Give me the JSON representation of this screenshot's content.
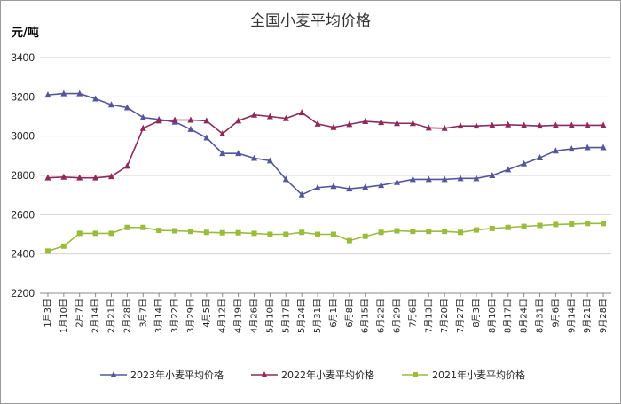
{
  "chart_data": {
    "type": "line",
    "title": "全国小麦平均价格",
    "ylabel": "元/吨",
    "xlabel": "",
    "ylim": [
      2200,
      3400
    ],
    "yticks": [
      2200,
      2400,
      2600,
      2800,
      3000,
      3200,
      3400
    ],
    "grid": true,
    "legend_position": "bottom",
    "categories": [
      "1月3日",
      "1月10日",
      "2月7日",
      "2月14日",
      "2月21日",
      "2月28日",
      "3月7日",
      "3月14日",
      "3月22日",
      "3月29日",
      "4月5日",
      "4月12日",
      "4月19日",
      "4月26日",
      "5月10日",
      "5月17日",
      "5月24日",
      "5月31日",
      "6月1日",
      "6月8日",
      "6月15日",
      "6月22日",
      "6月29日",
      "7月6日",
      "7月13日",
      "7月20日",
      "7月27日",
      "8月3日",
      "8月10日",
      "8月17日",
      "8月24日",
      "8月31日",
      "9月6日",
      "9月14日",
      "9月21日",
      "9月28日"
    ],
    "series": [
      {
        "name": "2023年小麦平均价格",
        "color": "#55569a",
        "marker": "triangle",
        "values": [
          3210,
          3217,
          3217,
          3190,
          3160,
          3145,
          3095,
          3085,
          3072,
          3035,
          2992,
          2912,
          2912,
          2888,
          2875,
          2780,
          2702,
          2738,
          2745,
          2732,
          2740,
          2750,
          2765,
          2780,
          2780,
          2780,
          2785,
          2785,
          2800,
          2830,
          2860,
          2890,
          2925,
          2935,
          2942,
          2942
        ]
      },
      {
        "name": "2022年小麦平均价格",
        "color": "#8e2a5b",
        "marker": "triangle",
        "values": [
          2788,
          2792,
          2788,
          2788,
          2795,
          2848,
          3040,
          3078,
          3082,
          3082,
          3078,
          3012,
          3078,
          3108,
          3100,
          3090,
          3120,
          3062,
          3045,
          3060,
          3075,
          3070,
          3065,
          3065,
          3042,
          3040,
          3052,
          3052,
          3055,
          3058,
          3055,
          3052,
          3055,
          3055,
          3055,
          3055
        ]
      },
      {
        "name": "2021年小麦平均价格",
        "color": "#9bbb3b",
        "marker": "square",
        "values": [
          2415,
          2440,
          2505,
          2505,
          2505,
          2535,
          2535,
          2520,
          2518,
          2515,
          2510,
          2508,
          2508,
          2505,
          2500,
          2500,
          2510,
          2500,
          2500,
          2468,
          2490,
          2510,
          2518,
          2515,
          2515,
          2515,
          2510,
          2522,
          2530,
          2535,
          2540,
          2545,
          2550,
          2552,
          2555,
          2555
        ]
      }
    ]
  }
}
